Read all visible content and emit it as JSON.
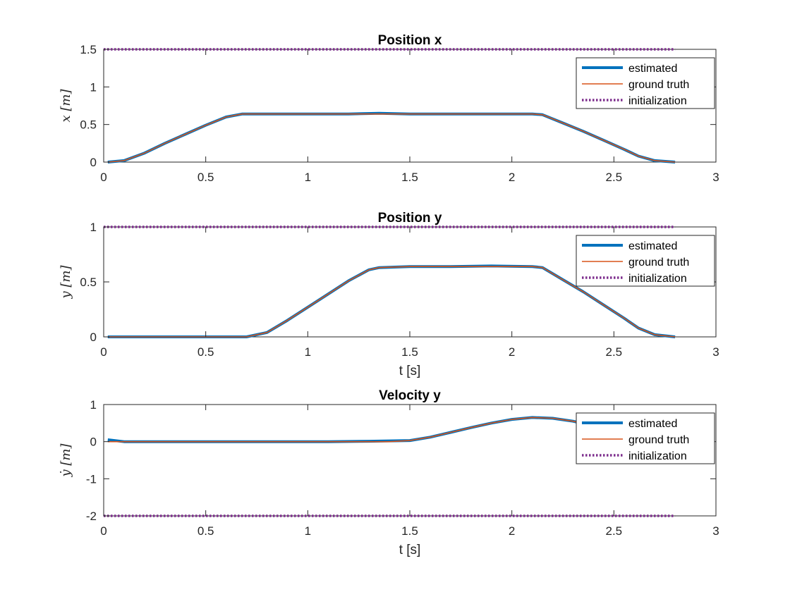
{
  "chart_data": [
    {
      "type": "line",
      "title": "Position x",
      "xlabel": "",
      "ylabel": "x [m]",
      "xlim": [
        0,
        3
      ],
      "ylim": [
        0,
        1.5
      ],
      "xticks": [
        "0",
        "0.5",
        "1",
        "1.5",
        "2",
        "2.5",
        "3"
      ],
      "yticks": [
        "0",
        "0.5",
        "1",
        "1.5"
      ],
      "legend_position": "top-right",
      "series": [
        {
          "name": "estimated",
          "color": "#0072BD",
          "x": [
            0.02,
            0.1,
            0.2,
            0.3,
            0.4,
            0.5,
            0.6,
            0.68,
            0.8,
            1.0,
            1.2,
            1.35,
            1.5,
            1.7,
            1.9,
            2.1,
            2.15,
            2.25,
            2.35,
            2.45,
            2.55,
            2.62,
            2.7,
            2.8
          ],
          "y": [
            0.0,
            0.02,
            0.12,
            0.25,
            0.37,
            0.49,
            0.6,
            0.64,
            0.64,
            0.64,
            0.64,
            0.65,
            0.64,
            0.64,
            0.64,
            0.64,
            0.63,
            0.52,
            0.41,
            0.29,
            0.17,
            0.08,
            0.02,
            0.0
          ]
        },
        {
          "name": "ground truth",
          "color": "#D95319",
          "x": [
            0.02,
            0.1,
            0.2,
            0.3,
            0.4,
            0.5,
            0.6,
            0.68,
            0.8,
            1.0,
            1.2,
            1.35,
            1.5,
            1.7,
            1.9,
            2.1,
            2.15,
            2.25,
            2.35,
            2.45,
            2.55,
            2.62,
            2.7,
            2.8
          ],
          "y": [
            0.0,
            0.02,
            0.12,
            0.25,
            0.37,
            0.49,
            0.6,
            0.64,
            0.64,
            0.64,
            0.64,
            0.64,
            0.64,
            0.64,
            0.64,
            0.64,
            0.63,
            0.52,
            0.41,
            0.29,
            0.17,
            0.08,
            0.02,
            0.0
          ]
        },
        {
          "name": "initialization",
          "color": "#7E2F8E",
          "x": [
            0,
            2.8
          ],
          "y": [
            1.5,
            1.5
          ]
        }
      ]
    },
    {
      "type": "line",
      "title": "Position y",
      "xlabel": "t [s]",
      "ylabel": "y [m]",
      "xlim": [
        0,
        3
      ],
      "ylim": [
        0,
        1
      ],
      "xticks": [
        "0",
        "0.5",
        "1",
        "1.5",
        "2",
        "2.5",
        "3"
      ],
      "yticks": [
        "0",
        "0.5",
        "1"
      ],
      "legend_position": "top-right",
      "series": [
        {
          "name": "estimated",
          "color": "#0072BD",
          "x": [
            0.02,
            0.2,
            0.4,
            0.6,
            0.7,
            0.8,
            0.9,
            1.0,
            1.1,
            1.2,
            1.3,
            1.35,
            1.5,
            1.7,
            1.9,
            2.1,
            2.15,
            2.25,
            2.35,
            2.45,
            2.55,
            2.62,
            2.7,
            2.8
          ],
          "y": [
            0.0,
            0.0,
            0.0,
            0.0,
            0.0,
            0.04,
            0.15,
            0.27,
            0.39,
            0.51,
            0.61,
            0.63,
            0.64,
            0.64,
            0.645,
            0.64,
            0.63,
            0.52,
            0.41,
            0.29,
            0.17,
            0.08,
            0.02,
            0.0
          ]
        },
        {
          "name": "ground truth",
          "color": "#D95319",
          "x": [
            0.02,
            0.2,
            0.4,
            0.6,
            0.7,
            0.8,
            0.9,
            1.0,
            1.1,
            1.2,
            1.3,
            1.35,
            1.5,
            1.7,
            1.9,
            2.1,
            2.15,
            2.25,
            2.35,
            2.45,
            2.55,
            2.62,
            2.7,
            2.8
          ],
          "y": [
            0.0,
            0.0,
            0.0,
            0.0,
            0.0,
            0.04,
            0.15,
            0.27,
            0.39,
            0.51,
            0.61,
            0.63,
            0.64,
            0.64,
            0.64,
            0.64,
            0.63,
            0.52,
            0.41,
            0.29,
            0.17,
            0.08,
            0.02,
            0.0
          ]
        },
        {
          "name": "initialization",
          "color": "#7E2F8E",
          "x": [
            0,
            2.8
          ],
          "y": [
            1.0,
            1.0
          ]
        }
      ]
    },
    {
      "type": "line",
      "title": "Velocity y",
      "xlabel": "t [s]",
      "ylabel": "ẏ [m]",
      "xlim": [
        0,
        3
      ],
      "ylim": [
        -2,
        1
      ],
      "xticks": [
        "0",
        "0.5",
        "1",
        "1.5",
        "2",
        "2.5",
        "3"
      ],
      "yticks": [
        "-2",
        "-1",
        "0",
        "1"
      ],
      "legend_position": "top-right",
      "series": [
        {
          "name": "estimated",
          "color": "#0072BD",
          "x": [
            0.02,
            0.1,
            0.3,
            0.5,
            0.7,
            0.9,
            1.1,
            1.3,
            1.4,
            1.5,
            1.6,
            1.7,
            1.8,
            1.9,
            2.0,
            2.1,
            2.2,
            2.3,
            2.4
          ],
          "y": [
            0.05,
            0.0,
            0.0,
            0.0,
            0.0,
            0.0,
            0.0,
            0.01,
            0.02,
            0.03,
            0.12,
            0.25,
            0.38,
            0.5,
            0.6,
            0.65,
            0.63,
            0.55,
            0.42
          ]
        },
        {
          "name": "ground truth",
          "color": "#D95319",
          "x": [
            0.02,
            0.1,
            0.3,
            0.5,
            0.7,
            0.9,
            1.1,
            1.3,
            1.4,
            1.5,
            1.6,
            1.7,
            1.8,
            1.9,
            2.0,
            2.1,
            2.2,
            2.3,
            2.4
          ],
          "y": [
            0.0,
            0.0,
            0.0,
            0.0,
            0.0,
            0.0,
            0.0,
            0.0,
            0.0,
            0.03,
            0.12,
            0.25,
            0.38,
            0.5,
            0.6,
            0.65,
            0.63,
            0.55,
            0.42
          ]
        },
        {
          "name": "initialization",
          "color": "#7E2F8E",
          "x": [
            0,
            2.8
          ],
          "y": [
            -2.0,
            -2.0
          ]
        }
      ]
    }
  ]
}
